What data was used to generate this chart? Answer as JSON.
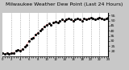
{
  "title": "Milwaukee Weather Dew Point (Last 24 Hours)",
  "background_color": "#c8c8c8",
  "plot_background": "#ffffff",
  "line_color": "#cc0000",
  "dot_color": "#000000",
  "grid_color": "#888888",
  "ymin": 15,
  "ymax": 58,
  "ytick_values": [
    20,
    25,
    30,
    35,
    40,
    45,
    50,
    55
  ],
  "ytick_labels": [
    "20",
    "25",
    "30",
    "35",
    "40",
    "45",
    "50",
    "55"
  ],
  "x_values": [
    0,
    0.5,
    1,
    1.5,
    2,
    2.5,
    3,
    3.5,
    4,
    4.5,
    5,
    5.5,
    6,
    6.5,
    7,
    7.5,
    8,
    8.5,
    9,
    9.5,
    10,
    10.5,
    11,
    11.5,
    12,
    12.5,
    13,
    13.5,
    14,
    14.5,
    15,
    15.5,
    16,
    16.5,
    17,
    17.5,
    18,
    18.5,
    19,
    19.5,
    20,
    20.5,
    21,
    21.5,
    22,
    22.5,
    23,
    23.5,
    24
  ],
  "y_values": [
    18,
    17,
    18,
    17,
    18,
    18,
    20,
    21,
    20,
    22,
    24,
    26,
    30,
    32,
    33,
    36,
    38,
    40,
    42,
    44,
    46,
    47,
    46,
    48,
    49,
    48,
    50,
    51,
    50,
    51,
    52,
    51,
    50,
    51,
    52,
    51,
    50,
    52,
    51,
    52,
    53,
    52,
    51,
    52,
    53,
    52,
    51,
    52,
    53
  ],
  "vgrid_positions": [
    2,
    4,
    6,
    8,
    10,
    12,
    14,
    16,
    18,
    20,
    22,
    24
  ],
  "title_fontsize": 4.5,
  "tick_fontsize": 3.2,
  "xtick_fontsize": 2.8,
  "linewidth": 0.7,
  "marker_size": 1.2,
  "xlim_min": 0,
  "xlim_max": 24,
  "xtick_step": 1,
  "xtick_label_step": 2
}
